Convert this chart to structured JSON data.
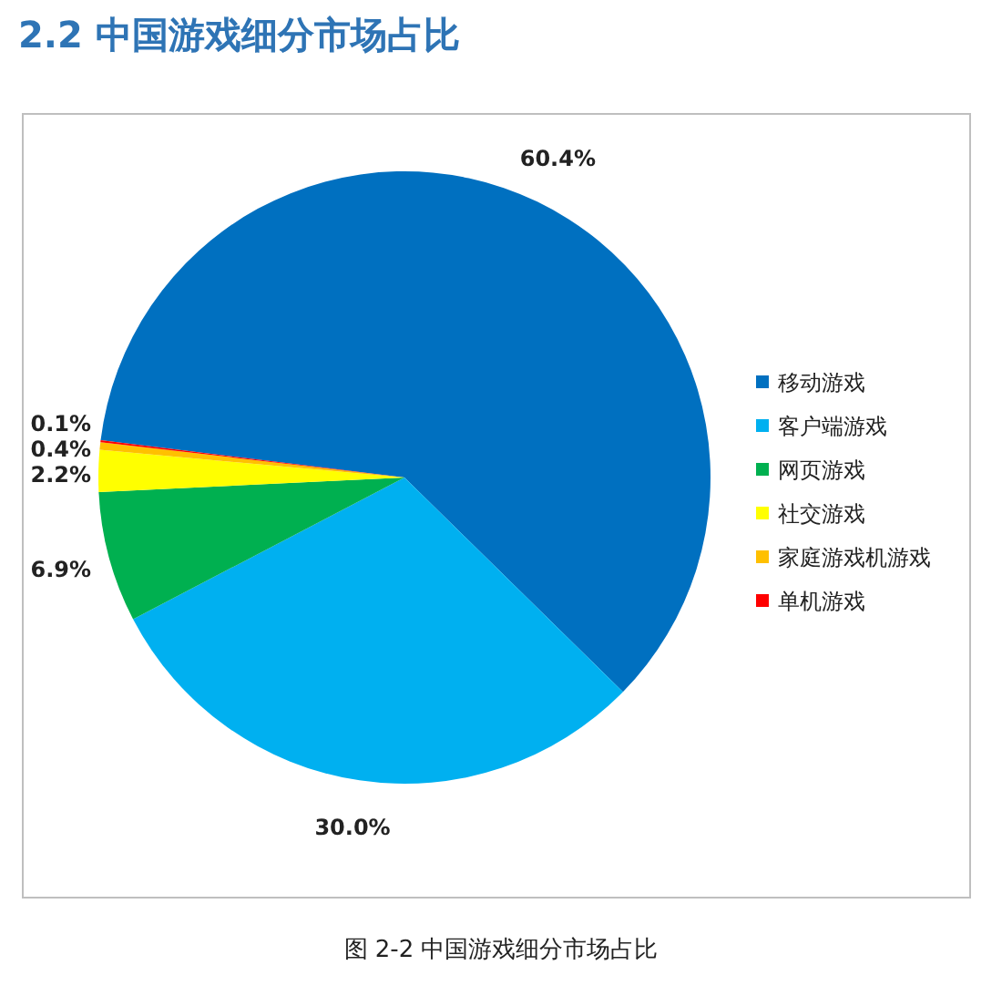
{
  "chart_data": {
    "type": "pie",
    "title": "2.2  中国游戏细分市场占比",
    "categories": [
      "移动游戏",
      "客户端游戏",
      "网页游戏",
      "社交游戏",
      "家庭游戏机游戏",
      "单机游戏"
    ],
    "values": [
      60.4,
      30.0,
      6.9,
      2.2,
      0.4,
      0.1
    ],
    "colors": [
      "#0070c0",
      "#00b0f0",
      "#00b050",
      "#ffff00",
      "#ffc000",
      "#ff0000"
    ],
    "value_labels": [
      "60.4%",
      "30.0%",
      "6.9%",
      "2.2%",
      "0.4%",
      "0.1%"
    ],
    "legend": "right",
    "annotations": [
      "图 2-2  中国游戏细分市场占比"
    ]
  }
}
